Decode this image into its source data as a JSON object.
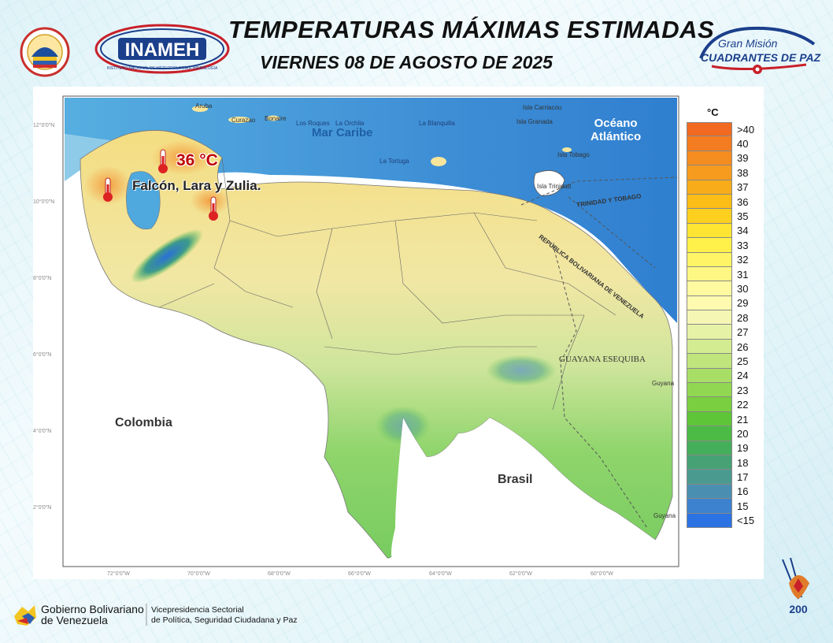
{
  "header": {
    "title": "TEMPERATURAS MÁXIMAS ESTIMADAS",
    "date": "VIERNES 08 DE AGOSTO DE 2025"
  },
  "logos": {
    "inameh": "INAMEH",
    "inameh_sub": "INSTITUTO NACIONAL DE METEOROLOGÍA E HIDROLOGÍA",
    "gran_mision_1": "Gran Misión",
    "gran_mision_2": "CUADRANTES DE PAZ",
    "gobierno_1": "Gobierno Bolivariano",
    "gobierno_2": "de Venezuela",
    "vicepresidencia_1": "Vicepresidencia Sectorial",
    "vicepresidencia_2": "de Política, Seguridad Ciudadana y Paz",
    "bicentenario": "200"
  },
  "map": {
    "max_temp": "36 °C",
    "max_regions": "Falcón, Lara y Zulia.",
    "labels": {
      "colombia": "Colombia",
      "brasil": "Brasil",
      "guayana": "GUAYANA ESEQUIBA",
      "mar_caribe": "Mar Caribe",
      "oceano_1": "Océano",
      "oceano_2": "Atlántico",
      "trinidad": "TRINIDAD Y TOBAGO",
      "rep_bol": "REPÚBLICA BOLIVARIANA DE VENEZUELA",
      "aruba": "Aruba",
      "curazao": "Curazao",
      "bonaire": "Bonaire",
      "los_roques": "Los Roques",
      "la_orchila": "La Orchila",
      "la_blanquilla": "La Blanquilla",
      "la_tortuga": "La Tortuga",
      "carriacou": "Isla Carriacou",
      "granada": "Isla Granada",
      "tobago": "Isla Tobago",
      "trinidad_isla": "Isla Trinidad",
      "guyana1": "Guyana",
      "guyana2": "Guyana"
    },
    "lat_ticks": [
      "12°0'0\"N",
      "10°0'0\"N",
      "8°0'0\"N",
      "6°0'0\"N",
      "4°0'0\"N",
      "2°0'0\"N"
    ],
    "lon_ticks": [
      "72°0'0\"W",
      "70°0'0\"W",
      "68°0'0\"W",
      "66°0'0\"W",
      "64°0'0\"W",
      "62°0'0\"W",
      "60°0'0\"W"
    ]
  },
  "legend": {
    "unit": "°C",
    "entries": [
      {
        "label": ">40",
        "color": "#f26a21"
      },
      {
        "label": "40",
        "color": "#f47c20"
      },
      {
        "label": "39",
        "color": "#f58c1f"
      },
      {
        "label": "38",
        "color": "#f79b1e"
      },
      {
        "label": "37",
        "color": "#f9ac1a"
      },
      {
        "label": "36",
        "color": "#fbbd16"
      },
      {
        "label": "35",
        "color": "#fdd020"
      },
      {
        "label": "34",
        "color": "#fee534"
      },
      {
        "label": "33",
        "color": "#fff04a"
      },
      {
        "label": "32",
        "color": "#fff466"
      },
      {
        "label": "31",
        "color": "#fff784"
      },
      {
        "label": "30",
        "color": "#fffaa0"
      },
      {
        "label": "29",
        "color": "#fefab0"
      },
      {
        "label": "28",
        "color": "#f5f6b4"
      },
      {
        "label": "27",
        "color": "#e6f2a6"
      },
      {
        "label": "26",
        "color": "#d3ec92"
      },
      {
        "label": "25",
        "color": "#bfe57c"
      },
      {
        "label": "24",
        "color": "#a9de66"
      },
      {
        "label": "23",
        "color": "#92d752"
      },
      {
        "label": "22",
        "color": "#79cf40"
      },
      {
        "label": "21",
        "color": "#5ec538"
      },
      {
        "label": "20",
        "color": "#4cbb45"
      },
      {
        "label": "19",
        "color": "#45ae5a"
      },
      {
        "label": "18",
        "color": "#46a274"
      },
      {
        "label": "17",
        "color": "#4b9a90"
      },
      {
        "label": "16",
        "color": "#4a8fb2"
      },
      {
        "label": "15",
        "color": "#3d82cf"
      },
      {
        "label": "<15",
        "color": "#2b73e3"
      }
    ]
  }
}
